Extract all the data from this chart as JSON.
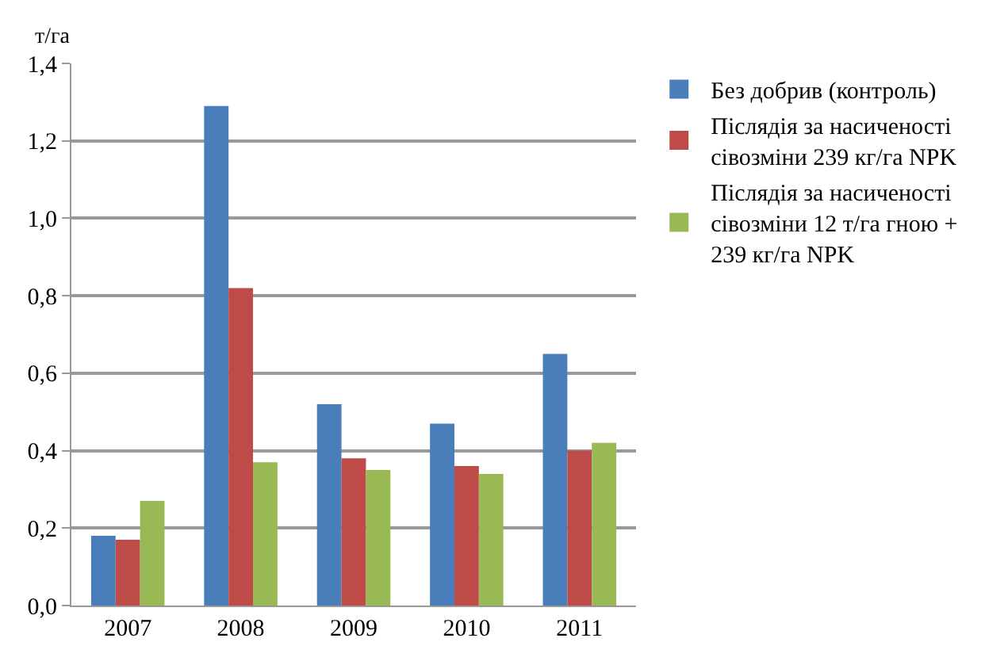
{
  "chart_data": {
    "type": "bar",
    "ylabel": "т/га",
    "categories": [
      "2007",
      "2008",
      "2009",
      "2010",
      "2011"
    ],
    "series": [
      {
        "name": "Без добрив (контроль)",
        "color": "#4a7ebb",
        "values": [
          0.18,
          1.29,
          0.52,
          0.47,
          0.65
        ]
      },
      {
        "name": "Післядія за насиченості сівозміни 239 кг/га NPK",
        "color": "#be4b48",
        "values": [
          0.17,
          0.82,
          0.38,
          0.36,
          0.4
        ]
      },
      {
        "name": "Післядія за насиченості сівозміни 12 т/га гною + 239 кг/га NPK",
        "color": "#98b954",
        "values": [
          0.27,
          0.37,
          0.35,
          0.34,
          0.42
        ]
      }
    ],
    "ylim": [
      0,
      1.4
    ],
    "yticks": [
      {
        "value": 0,
        "label": "0,0"
      },
      {
        "value": 0.2,
        "label": "0,2"
      },
      {
        "value": 0.4,
        "label": "0,4"
      },
      {
        "value": 0.6,
        "label": "0,6"
      },
      {
        "value": 0.8,
        "label": "0,8"
      },
      {
        "value": 1.0,
        "label": "1,0"
      },
      {
        "value": 1.2,
        "label": "1,2"
      },
      {
        "value": 1.4,
        "label": "1,4"
      }
    ],
    "grid": "y",
    "legend": "right"
  }
}
